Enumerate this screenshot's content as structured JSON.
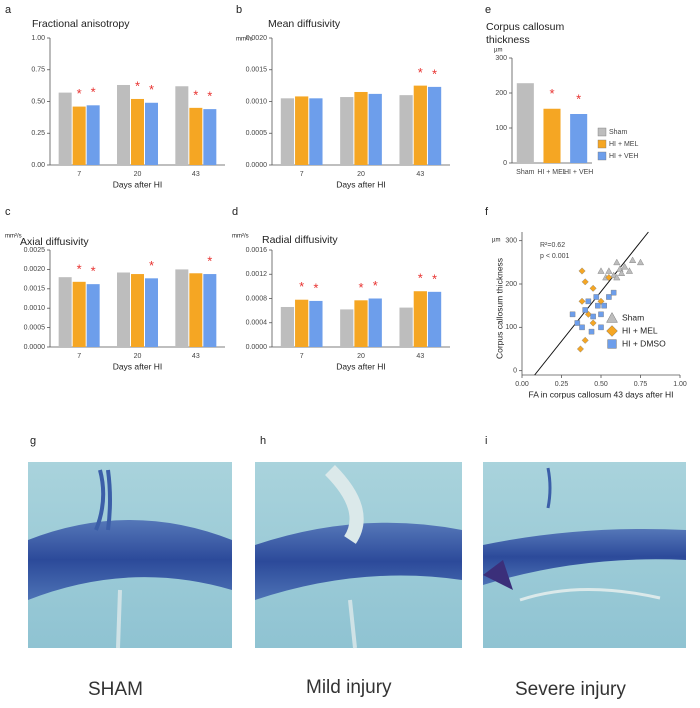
{
  "chart_data": [
    {
      "type": "bar",
      "panel": "a",
      "title": "Fractional anisotropy",
      "xlabel": "Days after HI",
      "categories": [
        "7",
        "20",
        "43"
      ],
      "series": [
        {
          "color": "#bdbdbd",
          "values": [
            0.57,
            0.63,
            0.62
          ]
        },
        {
          "color": "#f5a623",
          "values": [
            0.46,
            0.52,
            0.45
          ],
          "annotations": [
            "*",
            "*",
            "*"
          ]
        },
        {
          "color": "#6d9eeb",
          "values": [
            0.47,
            0.49,
            0.44
          ],
          "annotations": [
            "*",
            "*",
            "*"
          ]
        }
      ],
      "ylim": [
        0,
        1
      ],
      "yticks": [
        {
          "value": 0,
          "label": "0.00"
        },
        {
          "value": 0.25,
          "label": "0.25"
        },
        {
          "value": 0.5,
          "label": "0.50"
        },
        {
          "value": 0.75,
          "label": "0.75"
        },
        {
          "value": 1,
          "label": "1.00"
        }
      ]
    },
    {
      "type": "bar",
      "panel": "b",
      "title": "Mean diffusivity",
      "unit": "mm²/s",
      "xlabel": "Days after HI",
      "categories": [
        "7",
        "20",
        "43"
      ],
      "series": [
        {
          "color": "#bdbdbd",
          "values": [
            0.00105,
            0.00107,
            0.0011
          ]
        },
        {
          "color": "#f5a623",
          "values": [
            0.00108,
            0.00115,
            0.00125
          ],
          "annotations": [
            null,
            null,
            "*"
          ]
        },
        {
          "color": "#6d9eeb",
          "values": [
            0.00105,
            0.00112,
            0.00123
          ],
          "annotations": [
            null,
            null,
            "*"
          ]
        }
      ],
      "ylim": [
        0,
        0.002
      ],
      "yticks": [
        {
          "value": 0,
          "label": "0.0000"
        },
        {
          "value": 0.0005,
          "label": "0.0005"
        },
        {
          "value": 0.001,
          "label": "0.0010"
        },
        {
          "value": 0.0015,
          "label": "0.0015"
        },
        {
          "value": 0.002,
          "label": "0.0020"
        }
      ]
    },
    {
      "type": "bar",
      "panel": "c",
      "title": "Axial diffusivity",
      "unit": "mm²/s",
      "xlabel": "Days after HI",
      "categories": [
        "7",
        "20",
        "43"
      ],
      "series": [
        {
          "color": "#bdbdbd",
          "values": [
            0.0018,
            0.00192,
            0.002
          ]
        },
        {
          "color": "#f5a623",
          "values": [
            0.00168,
            0.00188,
            0.0019
          ],
          "annotations": [
            "*",
            null,
            null
          ]
        },
        {
          "color": "#6d9eeb",
          "values": [
            0.00162,
            0.00177,
            0.00188
          ],
          "annotations": [
            "*",
            "*",
            "*"
          ]
        }
      ],
      "ylim": [
        0,
        0.0025
      ],
      "yticks": [
        {
          "value": 0,
          "label": "0.0000"
        },
        {
          "value": 0.0005,
          "label": "0.0005"
        },
        {
          "value": 0.001,
          "label": "0.0010"
        },
        {
          "value": 0.0015,
          "label": "0.0015"
        },
        {
          "value": 0.002,
          "label": "0.0020"
        },
        {
          "value": 0.0025,
          "label": "0.0025"
        }
      ]
    },
    {
      "type": "bar",
      "panel": "d",
      "title": "Radial diffusivity",
      "unit": "mm²/s",
      "xlabel": "Days after HI",
      "categories": [
        "7",
        "20",
        "43"
      ],
      "series": [
        {
          "color": "#bdbdbd",
          "values": [
            0.00066,
            0.00062,
            0.00065
          ]
        },
        {
          "color": "#f5a623",
          "values": [
            0.00078,
            0.00077,
            0.00092
          ],
          "annotations": [
            "*",
            "*",
            "*"
          ]
        },
        {
          "color": "#6d9eeb",
          "values": [
            0.00076,
            0.0008,
            0.00091
          ],
          "annotations": [
            "*",
            "*",
            "*"
          ]
        }
      ],
      "ylim": [
        0,
        0.0016
      ],
      "yticks": [
        {
          "value": 0,
          "label": "0.0000"
        },
        {
          "value": 0.0004,
          "label": "0.0004"
        },
        {
          "value": 0.0008,
          "label": "0.0008"
        },
        {
          "value": 0.0012,
          "label": "0.0012"
        },
        {
          "value": 0.0016,
          "label": "0.0016"
        }
      ]
    },
    {
      "type": "column",
      "panel": "e",
      "title": [
        "Corpus callosum",
        "thickness"
      ],
      "unit": "µm",
      "categories": [
        "Sham",
        "HI + MEL",
        "HI + VEH"
      ],
      "values": [
        228,
        155,
        140
      ],
      "colors": [
        "#bdbdbd",
        "#f5a623",
        "#6d9eeb"
      ],
      "annotations": [
        null,
        "*",
        "*"
      ],
      "legend": [
        "Sham",
        "HI + MEL",
        "HI + VEH"
      ],
      "ylim": [
        0,
        300
      ],
      "yticks": [
        0,
        100,
        200,
        300
      ]
    },
    {
      "type": "scatter",
      "panel": "f",
      "unit": "µm",
      "ylabel": "Corpus callosum thickness",
      "xlabel": "FA in corpus callosum 43 days after HI",
      "annotations": [
        "R²=0.62",
        "p < 0.001"
      ],
      "series": [
        {
          "name": "Sham",
          "color": "#bdbdbd",
          "marker": "triangle",
          "x": [
            0.55,
            0.6,
            0.62,
            0.65,
            0.68,
            0.7,
            0.75,
            0.58,
            0.53,
            0.63,
            0.5,
            0.6
          ],
          "y": [
            230,
            250,
            235,
            240,
            230,
            255,
            250,
            220,
            215,
            225,
            230,
            215
          ]
        },
        {
          "name": "HI + MEL",
          "color": "#f5a623",
          "marker": "diamond",
          "x": [
            0.38,
            0.4,
            0.45,
            0.5,
            0.38,
            0.42,
            0.55,
            0.4,
            0.37,
            0.45
          ],
          "y": [
            230,
            205,
            190,
            160,
            160,
            130,
            215,
            70,
            50,
            110
          ]
        },
        {
          "name": "HI + DMSO",
          "color": "#6d9eeb",
          "marker": "square",
          "x": [
            0.32,
            0.35,
            0.4,
            0.42,
            0.45,
            0.48,
            0.5,
            0.52,
            0.55,
            0.5,
            0.44,
            0.38,
            0.58,
            0.47
          ],
          "y": [
            130,
            110,
            140,
            160,
            125,
            150,
            130,
            150,
            170,
            100,
            90,
            100,
            180,
            170
          ]
        }
      ],
      "fit_line": {
        "x": [
          0.08,
          0.8
        ],
        "y": [
          -10,
          320
        ]
      },
      "xlim": [
        0,
        1
      ],
      "xticks": [
        {
          "value": 0,
          "label": "0.00"
        },
        {
          "value": 0.25,
          "label": "0.25"
        },
        {
          "value": 0.5,
          "label": "0.50"
        },
        {
          "value": 0.75,
          "label": "0.75"
        },
        {
          "value": 1,
          "label": "1.00"
        }
      ],
      "ylim": [
        -10,
        320
      ],
      "yticks": [
        0,
        100,
        200,
        300
      ]
    }
  ],
  "images": [
    {
      "panel": "g",
      "caption": "SHAM"
    },
    {
      "panel": "h",
      "caption": "Mild injury"
    },
    {
      "panel": "i",
      "caption": "Severe injury"
    }
  ]
}
